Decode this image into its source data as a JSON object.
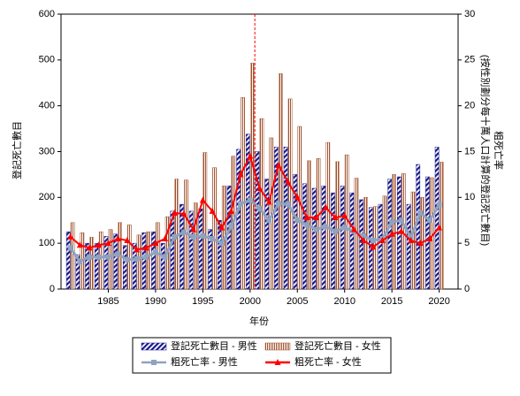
{
  "chart_data": {
    "type": "bar_line",
    "x": [
      1981,
      1982,
      1983,
      1984,
      1985,
      1986,
      1987,
      1988,
      1989,
      1990,
      1991,
      1992,
      1993,
      1994,
      1995,
      1996,
      1997,
      1998,
      1999,
      2000,
      2001,
      2002,
      2003,
      2004,
      2005,
      2006,
      2007,
      2008,
      2009,
      2010,
      2011,
      2012,
      2013,
      2014,
      2015,
      2016,
      2017,
      2018,
      2019,
      2020
    ],
    "series": [
      {
        "name": "登記死亡數目 - 男性",
        "kind": "bar",
        "color": "#1a1a8c",
        "values": [
          125,
          75,
          100,
          100,
          115,
          120,
          95,
          100,
          123,
          125,
          100,
          170,
          185,
          170,
          175,
          130,
          150,
          225,
          305,
          338,
          300,
          240,
          310,
          310,
          250,
          230,
          220,
          225,
          210,
          225,
          210,
          195,
          178,
          185,
          240,
          245,
          185,
          272,
          245,
          310
        ]
      },
      {
        "name": "登記死亡數目 - 女性",
        "kind": "bar",
        "color": "#a0522d",
        "values": [
          145,
          123,
          113,
          125,
          130,
          145,
          140,
          118,
          125,
          145,
          158,
          240,
          238,
          188,
          298,
          265,
          225,
          290,
          418,
          493,
          372,
          330,
          470,
          415,
          355,
          280,
          285,
          320,
          278,
          293,
          242,
          200,
          180,
          203,
          250,
          252,
          212,
          200,
          243,
          277
        ]
      },
      {
        "name": "粗死亡率 - 男性",
        "kind": "line",
        "axis": "y2",
        "color": "#8fa3bf",
        "marker": "square",
        "values": [
          4.5,
          3,
          3.5,
          3.5,
          3.5,
          3.8,
          3.2,
          3.3,
          3.5,
          4,
          3.5,
          5.7,
          6.2,
          5.7,
          5.8,
          5.5,
          5,
          6.8,
          9.3,
          9.7,
          8.8,
          7.5,
          9.3,
          9.3,
          7.5,
          7,
          6.5,
          6.8,
          6.3,
          6.7,
          6.3,
          5.8,
          5.3,
          5.5,
          7.3,
          7.5,
          5.6,
          8.3,
          7.5,
          9.2
        ]
      },
      {
        "name": "粗死亡率 - 女性",
        "kind": "line",
        "axis": "y2",
        "color": "#ff0000",
        "marker": "triangle",
        "values": [
          5.7,
          4.8,
          4.5,
          4.8,
          5,
          5.5,
          5.3,
          4.3,
          4.5,
          5,
          5.5,
          8.3,
          8.2,
          6.5,
          9.7,
          8.5,
          6.7,
          8.5,
          12.5,
          14.5,
          11,
          9.5,
          13.5,
          11.7,
          10,
          7.8,
          7.8,
          8.9,
          7.8,
          8,
          6.5,
          5.3,
          4.6,
          5.3,
          6,
          6.3,
          5.3,
          5,
          5.5,
          6.7
        ]
      }
    ],
    "x_label": "年份",
    "y_label": "登記死亡數目",
    "y2_label": [
      "粗死亡率",
      "(按性別劃分每十萬人口計算的登記死亡數目)"
    ],
    "xlim": [
      1980,
      2022
    ],
    "xticks": [
      1985,
      1990,
      1995,
      2000,
      2005,
      2010,
      2015,
      2020
    ],
    "ylim": [
      0,
      600
    ],
    "yticks": [
      0,
      100,
      200,
      300,
      400,
      500,
      600
    ],
    "y2lim": [
      0,
      30
    ],
    "y2ticks": [
      0,
      5,
      10,
      15,
      20,
      25,
      30
    ],
    "reference_line_x": 2000.5,
    "reference_line_color": "#ff0000",
    "legend": "bottom"
  }
}
